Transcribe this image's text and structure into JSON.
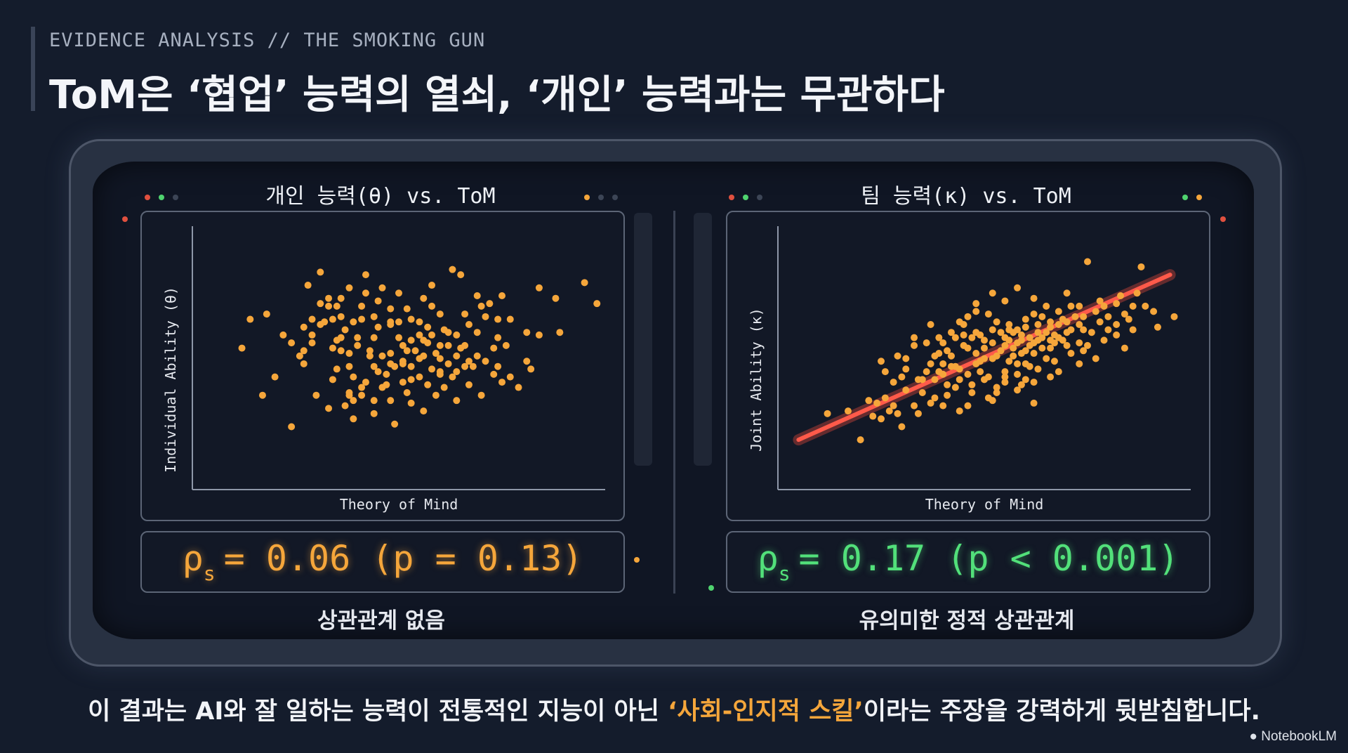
{
  "header": {
    "eyebrow": "EVIDENCE ANALYSIS // THE SMOKING GUN",
    "title": "ToM은 ‘협업’ 능력의 열쇠, ‘개인’ 능력과는 무관하다"
  },
  "colors": {
    "background": "#141c2c",
    "point": "#f5a63b",
    "trend": "#ff5a4a",
    "stat_left": "#f5a63b",
    "stat_right": "#52e07a"
  },
  "panels": [
    {
      "title": "개인 능력(θ) vs. ToM",
      "stat": {
        "symbol": "ρ",
        "subscript": "s",
        "equation": "= 0.06 (p = 0.13)"
      },
      "caption": "상관관계 없음"
    },
    {
      "title": "팀 능력(κ) vs. ToM",
      "stat": {
        "symbol": "ρ",
        "subscript": "s",
        "equation": "= 0.17 (p < 0.001)"
      },
      "caption": "유의미한 정적 상관관계"
    }
  ],
  "chart_data": [
    {
      "type": "scatter",
      "title": "개인 능력(θ) vs. ToM",
      "xlabel": "Theory of Mind",
      "ylabel": "Individual Ability (θ)",
      "xlim": [
        0,
        100
      ],
      "ylim": [
        0,
        100
      ],
      "trendline": false,
      "points": [
        [
          12,
          54
        ],
        [
          32,
          64
        ],
        [
          38,
          77
        ],
        [
          31,
          83
        ],
        [
          64,
          34
        ],
        [
          56,
          30
        ],
        [
          27,
          48
        ],
        [
          37,
          32
        ],
        [
          24,
          24
        ],
        [
          18,
          67
        ],
        [
          14,
          65
        ],
        [
          17,
          36
        ],
        [
          20,
          43
        ],
        [
          30,
          36
        ],
        [
          27,
          53
        ],
        [
          28,
          78
        ],
        [
          31,
          71
        ],
        [
          33,
          70
        ],
        [
          44,
          58
        ],
        [
          44,
          66
        ],
        [
          45,
          45
        ],
        [
          48,
          52
        ],
        [
          53,
          65
        ],
        [
          58,
          70
        ],
        [
          56,
          57
        ],
        [
          60,
          55
        ],
        [
          60,
          50
        ],
        [
          51,
          55
        ],
        [
          50,
          58
        ],
        [
          51,
          49
        ],
        [
          47,
          40
        ],
        [
          44,
          34
        ],
        [
          49,
          25
        ],
        [
          53,
          33
        ],
        [
          57,
          40
        ],
        [
          62,
          55
        ],
        [
          64,
          51
        ],
        [
          65,
          54
        ],
        [
          68,
          47
        ],
        [
          71,
          49
        ],
        [
          73,
          54
        ],
        [
          75,
          74
        ],
        [
          77,
          65
        ],
        [
          81,
          60
        ],
        [
          84,
          59
        ],
        [
          89,
          60
        ],
        [
          95,
          79
        ],
        [
          98,
          71
        ],
        [
          81,
          49
        ],
        [
          77,
          43
        ],
        [
          82,
          46
        ],
        [
          67,
          40
        ],
        [
          70,
          36
        ],
        [
          64,
          59
        ],
        [
          61,
          61
        ],
        [
          55,
          64
        ],
        [
          52,
          69
        ],
        [
          50,
          75
        ],
        [
          46,
          77
        ],
        [
          42,
          75
        ],
        [
          42,
          82
        ],
        [
          41,
          70
        ],
        [
          39,
          64
        ],
        [
          37,
          61
        ],
        [
          35,
          57
        ],
        [
          34,
          54
        ],
        [
          29,
          59
        ],
        [
          29,
          56
        ],
        [
          27,
          62
        ],
        [
          34,
          42
        ],
        [
          35,
          46
        ],
        [
          38,
          47
        ],
        [
          38,
          37
        ],
        [
          39,
          43
        ],
        [
          42,
          41
        ],
        [
          43,
          51
        ],
        [
          44,
          47
        ],
        [
          46,
          39
        ],
        [
          47,
          44
        ],
        [
          51,
          41
        ],
        [
          53,
          42
        ],
        [
          55,
          43
        ],
        [
          58,
          46
        ],
        [
          60,
          44
        ],
        [
          61,
          39
        ],
        [
          63,
          43
        ],
        [
          64,
          45
        ],
        [
          69,
          51
        ],
        [
          74,
          47
        ],
        [
          73,
          44
        ],
        [
          69,
          60
        ],
        [
          67,
          63
        ],
        [
          66,
          67
        ],
        [
          72,
          71
        ],
        [
          69,
          74
        ],
        [
          71,
          66
        ],
        [
          60,
          67
        ],
        [
          57,
          62
        ],
        [
          58,
          59
        ],
        [
          55,
          59
        ],
        [
          53,
          57
        ],
        [
          52,
          53
        ],
        [
          51,
          48
        ],
        [
          49,
          47
        ],
        [
          48,
          48
        ],
        [
          46,
          51
        ],
        [
          43,
          53
        ],
        [
          40,
          55
        ],
        [
          40,
          58
        ],
        [
          38,
          52
        ],
        [
          36,
          58
        ],
        [
          36,
          53
        ],
        [
          41,
          65
        ],
        [
          45,
          62
        ],
        [
          48,
          63
        ],
        [
          48,
          64
        ],
        [
          62,
          60
        ],
        [
          66,
          55
        ],
        [
          66,
          47
        ],
        [
          56,
          51
        ],
        [
          57,
          56
        ],
        [
          59,
          52
        ],
        [
          55,
          50
        ],
        [
          54,
          53
        ],
        [
          53,
          47
        ],
        [
          33,
          31
        ],
        [
          39,
          27
        ],
        [
          44,
          29
        ],
        [
          48,
          34
        ],
        [
          52,
          37
        ],
        [
          59,
          36
        ],
        [
          74,
          58
        ],
        [
          76,
          55
        ],
        [
          84,
          77
        ],
        [
          88,
          73
        ],
        [
          31,
          63
        ],
        [
          29,
          65
        ],
        [
          26,
          51
        ],
        [
          24,
          56
        ],
        [
          22,
          59
        ],
        [
          35,
          70
        ],
        [
          36,
          66
        ],
        [
          34,
          65
        ],
        [
          65,
          82
        ],
        [
          63,
          84
        ],
        [
          74,
          65
        ],
        [
          70,
          70
        ],
        [
          58,
          78
        ],
        [
          56,
          73
        ],
        [
          41,
          39
        ],
        [
          39,
          34
        ],
        [
          41,
          36
        ],
        [
          38,
          36
        ],
        [
          60,
          45
        ],
        [
          62,
          48
        ],
        [
          67,
          49
        ],
        [
          45,
          72
        ],
        [
          48,
          69
        ],
        [
          50,
          64
        ],
        [
          36,
          73
        ],
        [
          33,
          73
        ],
        [
          79,
          39
        ],
        [
          75,
          41
        ]
      ]
    },
    {
      "type": "scatter",
      "title": "팀 능력(κ) vs. ToM",
      "xlabel": "Theory of Mind",
      "ylabel": "Joint Ability (κ)",
      "xlim": [
        0,
        100
      ],
      "ylim": [
        0,
        100
      ],
      "trendline": true,
      "trend": {
        "x": [
          5,
          95
        ],
        "y": [
          19,
          82
        ]
      },
      "points": [
        [
          12,
          29
        ],
        [
          29,
          29
        ],
        [
          48,
          68
        ],
        [
          70,
          75
        ],
        [
          75,
          87
        ],
        [
          88,
          85
        ],
        [
          89,
          70
        ],
        [
          86,
          61
        ],
        [
          96,
          66
        ],
        [
          78,
          72
        ],
        [
          60,
          53
        ],
        [
          66,
          64
        ],
        [
          58,
          48
        ],
        [
          65,
          50
        ],
        [
          63,
          57
        ],
        [
          70,
          55
        ],
        [
          67,
          49
        ],
        [
          75,
          55
        ],
        [
          73,
          48
        ],
        [
          55,
          45
        ],
        [
          53,
          37
        ],
        [
          52,
          34
        ],
        [
          46,
          32
        ],
        [
          43,
          39
        ],
        [
          40,
          32
        ],
        [
          39,
          45
        ],
        [
          37,
          48
        ],
        [
          42,
          47
        ],
        [
          45,
          55
        ],
        [
          48,
          60
        ],
        [
          50,
          57
        ],
        [
          53,
          64
        ],
        [
          56,
          63
        ],
        [
          57,
          60
        ],
        [
          55,
          58
        ],
        [
          58,
          56
        ],
        [
          52,
          50
        ],
        [
          50,
          54
        ],
        [
          48,
          48
        ],
        [
          47,
          40
        ],
        [
          44,
          46
        ],
        [
          50,
          42
        ],
        [
          44,
          30
        ],
        [
          30,
          24
        ],
        [
          25,
          27
        ],
        [
          20,
          19
        ],
        [
          23,
          28
        ],
        [
          17,
          30
        ],
        [
          34,
          29
        ],
        [
          37,
          33
        ],
        [
          35,
          42
        ],
        [
          31,
          38
        ],
        [
          26,
          35
        ],
        [
          34,
          42
        ],
        [
          26,
          45
        ],
        [
          25,
          49
        ],
        [
          29,
          51
        ],
        [
          33,
          55
        ],
        [
          36,
          56
        ],
        [
          40,
          56
        ],
        [
          41,
          53
        ],
        [
          42,
          51
        ],
        [
          39,
          58
        ],
        [
          37,
          63
        ],
        [
          44,
          64
        ],
        [
          45,
          59
        ],
        [
          47,
          58
        ],
        [
          49,
          59
        ],
        [
          52,
          56
        ],
        [
          55,
          55
        ],
        [
          56,
          57
        ],
        [
          59,
          59
        ],
        [
          60,
          62
        ],
        [
          62,
          67
        ],
        [
          64,
          66
        ],
        [
          66,
          62
        ],
        [
          68,
          63
        ],
        [
          69,
          65
        ],
        [
          68,
          68
        ],
        [
          71,
          70
        ],
        [
          73,
          70
        ],
        [
          74,
          66
        ],
        [
          73,
          63
        ],
        [
          71,
          61
        ],
        [
          68,
          58
        ],
        [
          64,
          58
        ],
        [
          62,
          56
        ],
        [
          62,
          52
        ],
        [
          61,
          47
        ],
        [
          60,
          42
        ],
        [
          59,
          40
        ],
        [
          58,
          38
        ],
        [
          62,
          33
        ],
        [
          55,
          41
        ],
        [
          53,
          39
        ],
        [
          51,
          43
        ],
        [
          49,
          45
        ],
        [
          46,
          44
        ],
        [
          41,
          40
        ],
        [
          38,
          35
        ],
        [
          35,
          37
        ],
        [
          33,
          32
        ],
        [
          28,
          32
        ],
        [
          24,
          33
        ],
        [
          56,
          49
        ],
        [
          57,
          51
        ],
        [
          59,
          52
        ],
        [
          56,
          61
        ],
        [
          54,
          60
        ],
        [
          52,
          61
        ],
        [
          51,
          67
        ],
        [
          48,
          71
        ],
        [
          45,
          63
        ],
        [
          42,
          60
        ],
        [
          46,
          54
        ],
        [
          43,
          47
        ],
        [
          40,
          48
        ],
        [
          38,
          51
        ],
        [
          39,
          52
        ],
        [
          40,
          44
        ],
        [
          36,
          45
        ],
        [
          31,
          46
        ],
        [
          53,
          51
        ],
        [
          63,
          60
        ],
        [
          67,
          59
        ],
        [
          70,
          60
        ],
        [
          73,
          56
        ],
        [
          74,
          53
        ],
        [
          66,
          54
        ],
        [
          61,
          55
        ],
        [
          58,
          61
        ],
        [
          61,
          58
        ],
        [
          60,
          65
        ],
        [
          63,
          63
        ],
        [
          65,
          60
        ],
        [
          67,
          56
        ],
        [
          69,
          57
        ],
        [
          62,
          41
        ],
        [
          58,
          44
        ],
        [
          66,
          43
        ],
        [
          68,
          45
        ],
        [
          71,
          52
        ],
        [
          77,
          50
        ],
        [
          79,
          57
        ],
        [
          82,
          59
        ],
        [
          85,
          65
        ],
        [
          80,
          66
        ],
        [
          82,
          71
        ],
        [
          83,
          74
        ],
        [
          87,
          75
        ],
        [
          91,
          68
        ],
        [
          92,
          62
        ],
        [
          84,
          54
        ],
        [
          65,
          70
        ],
        [
          62,
          73
        ],
        [
          58,
          77
        ],
        [
          55,
          72
        ],
        [
          52,
          75
        ],
        [
          46,
          66
        ],
        [
          43,
          58
        ],
        [
          38,
          42
        ],
        [
          54,
          53
        ],
        [
          49,
          49
        ],
        [
          63,
          46
        ],
        [
          60,
          48
        ],
        [
          55,
          43
        ],
        [
          51,
          35
        ],
        [
          47,
          37
        ],
        [
          44,
          42
        ],
        [
          41,
          36
        ],
        [
          48,
          52
        ],
        [
          50,
          50
        ],
        [
          57,
          54
        ],
        [
          59,
          57
        ],
        [
          64,
          54
        ],
        [
          66,
          57
        ],
        [
          70,
          64
        ],
        [
          72,
          66
        ],
        [
          74,
          61
        ],
        [
          76,
          60
        ],
        [
          78,
          64
        ],
        [
          80,
          61
        ],
        [
          82,
          63
        ],
        [
          84,
          67
        ],
        [
          77,
          68
        ],
        [
          79,
          70
        ],
        [
          86,
          70
        ],
        [
          33,
          58
        ],
        [
          31,
          50
        ],
        [
          30,
          43
        ],
        [
          28,
          41
        ],
        [
          27,
          30
        ],
        [
          22,
          34
        ]
      ]
    }
  ],
  "footer": {
    "before": "이 결과는 AI와 잘 일하는 능력이 전통적인 지능이 아닌 ",
    "highlight": "‘사회-인지적 스킬’",
    "after": "이라는 주장을 강력하게 뒷받침합니다."
  },
  "brand": "NotebookLM"
}
